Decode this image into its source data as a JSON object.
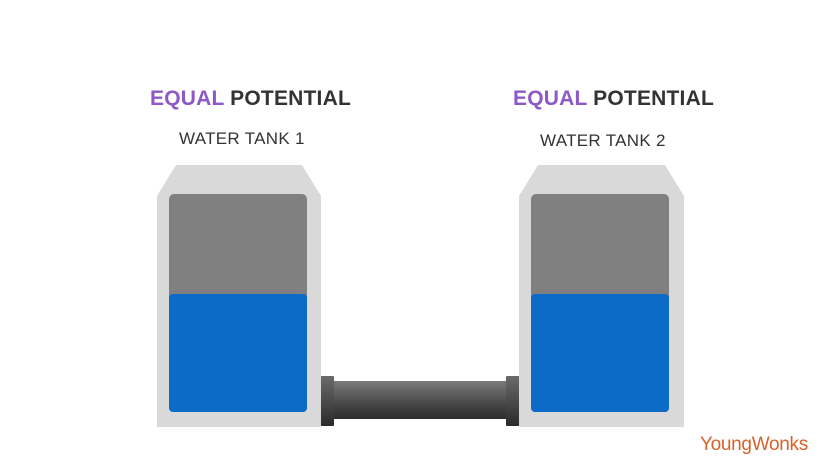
{
  "tank1": {
    "heading_accent": "EQUAL",
    "heading_rest": "POTENTIAL",
    "label": "WATER TANK 1",
    "water_level": 0.5
  },
  "tank2": {
    "heading_accent": "EQUAL",
    "heading_rest": "POTENTIAL",
    "label": "WATER TANK 2",
    "water_level": 0.5
  },
  "brand": {
    "name": "YoungWonks"
  },
  "colors": {
    "accent_purple": "#8e59c7",
    "tank_shell": "#d9d9d9",
    "tank_empty": "#808080",
    "water": "#0b6bc7",
    "pipe": "#555555",
    "brand_orange": "#d9622b"
  }
}
